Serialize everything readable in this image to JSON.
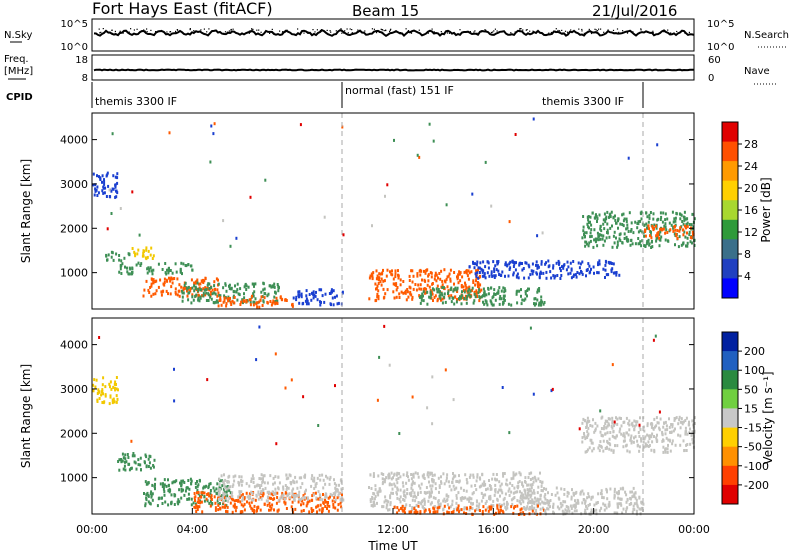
{
  "header": {
    "title": "Fort Hays East (fitACF)",
    "beam": "Beam 15",
    "date": "21/Jul/2016"
  },
  "top_panels": {
    "nsky_label": "N.Sky",
    "nsky_ticks": [
      "10^5",
      "10^0"
    ],
    "nsearch_label": "N.Search",
    "nsearch_ticks": [
      "10^5",
      "10^0"
    ],
    "freq_label": "Freq.",
    "freq_unit": "[MHz]",
    "freq_ticks": [
      "18",
      "8"
    ],
    "nave_label": "Nave",
    "nave_ticks": [
      "60",
      "0"
    ],
    "cpid_label": "CPID",
    "cpid_segments": [
      {
        "label": "themis 3300 IF",
        "start_h": 0,
        "end_h": 10
      },
      {
        "label": "normal (fast) 151 IF",
        "start_h": 10,
        "end_h": 22
      },
      {
        "label": "themis 3300 IF",
        "start_h": 22,
        "end_h": 24
      }
    ]
  },
  "chart_data": [
    {
      "type": "heatmap",
      "panel": "power",
      "ylabel": "Slant Range [km]",
      "xlabel": "",
      "xlim": [
        0,
        24
      ],
      "ylim": [
        180,
        4600
      ],
      "x_ticks": [
        "00:00",
        "04:00",
        "08:00",
        "12:00",
        "16:00",
        "20:00",
        "00:00"
      ],
      "y_ticks": [
        1000,
        2000,
        3000,
        4000
      ],
      "colorbar": {
        "label": "Power [dB]",
        "ticks": [
          "28",
          "24",
          "20",
          "16",
          "12",
          "8",
          "4"
        ],
        "colors": [
          "#e00000",
          "#ff5000",
          "#ff9a00",
          "#ffd000",
          "#a8d830",
          "#2f9a3a",
          "#3a6f8a",
          "#2040c0",
          "#0000ff"
        ]
      },
      "scatter_regions": [
        {
          "t0": 0.0,
          "t1": 1.0,
          "r0": 2700,
          "r1": 3300,
          "level": "blue"
        },
        {
          "t0": 0.5,
          "t1": 1.5,
          "r0": 1300,
          "r1": 1500,
          "level": "green"
        },
        {
          "t0": 1.5,
          "t1": 2.5,
          "r0": 1350,
          "r1": 1600,
          "level": "yellow"
        },
        {
          "t0": 1.0,
          "t1": 4.0,
          "r0": 1000,
          "r1": 1250,
          "level": "green"
        },
        {
          "t0": 2.0,
          "t1": 5.0,
          "r0": 500,
          "r1": 950,
          "level": "orange"
        },
        {
          "t0": 3.5,
          "t1": 7.5,
          "r0": 350,
          "r1": 800,
          "level": "green"
        },
        {
          "t0": 5.0,
          "t1": 8.0,
          "r0": 250,
          "r1": 500,
          "level": "orange"
        },
        {
          "t0": 8.0,
          "t1": 10.0,
          "r0": 300,
          "r1": 650,
          "level": "blue"
        },
        {
          "t0": 11.0,
          "t1": 15.5,
          "r0": 400,
          "r1": 1100,
          "level": "orange"
        },
        {
          "t0": 13.0,
          "t1": 18.0,
          "r0": 300,
          "r1": 700,
          "level": "green"
        },
        {
          "t0": 15.0,
          "t1": 21.0,
          "r0": 900,
          "r1": 1300,
          "level": "blue"
        },
        {
          "t0": 19.5,
          "t1": 24.0,
          "r0": 1600,
          "r1": 2400,
          "level": "green"
        },
        {
          "t0": 22.0,
          "t1": 24.0,
          "r0": 1800,
          "r1": 2100,
          "level": "orange"
        }
      ]
    },
    {
      "type": "heatmap",
      "panel": "velocity",
      "ylabel": "Slant Range [km]",
      "xlabel": "Time UT",
      "xlim": [
        0,
        24
      ],
      "ylim": [
        180,
        4600
      ],
      "x_ticks": [
        "00:00",
        "04:00",
        "08:00",
        "12:00",
        "16:00",
        "20:00",
        "00:00"
      ],
      "y_ticks": [
        1000,
        2000,
        3000,
        4000
      ],
      "colorbar": {
        "label": "Velocity [m s⁻¹]",
        "ticks": [
          "200",
          "100",
          "50",
          "15",
          "-15",
          "-50",
          "-100",
          "-200"
        ],
        "colors": [
          "#0020a0",
          "#2060c0",
          "#2a8a40",
          "#70d040",
          "#c8c8c8",
          "#ffd000",
          "#ff9000",
          "#ff4000",
          "#e00000"
        ]
      },
      "scatter_regions": [
        {
          "t0": 0.0,
          "t1": 1.0,
          "r0": 2700,
          "r1": 3300,
          "level": "yellow"
        },
        {
          "t0": 1.0,
          "t1": 2.5,
          "r0": 1200,
          "r1": 1600,
          "level": "green"
        },
        {
          "t0": 2.0,
          "t1": 5.5,
          "r0": 400,
          "r1": 1000,
          "level": "green"
        },
        {
          "t0": 4.0,
          "t1": 10.0,
          "r0": 250,
          "r1": 700,
          "level": "orange"
        },
        {
          "t0": 5.0,
          "t1": 10.0,
          "r0": 500,
          "r1": 1100,
          "level": "gray"
        },
        {
          "t0": 11.0,
          "t1": 18.0,
          "r0": 300,
          "r1": 1150,
          "level": "gray"
        },
        {
          "t0": 12.0,
          "t1": 18.0,
          "r0": 200,
          "r1": 400,
          "level": "orange"
        },
        {
          "t0": 17.0,
          "t1": 22.0,
          "r0": 200,
          "r1": 800,
          "level": "gray"
        },
        {
          "t0": 19.5,
          "t1": 24.0,
          "r0": 1600,
          "r1": 2400,
          "level": "gray"
        }
      ]
    }
  ],
  "colors": {
    "blue": "#1a3fd0",
    "green": "#3e8f55",
    "yellow": "#f2c800",
    "orange": "#ff5a00",
    "gray": "#c4c4c0",
    "red": "#e00000"
  }
}
